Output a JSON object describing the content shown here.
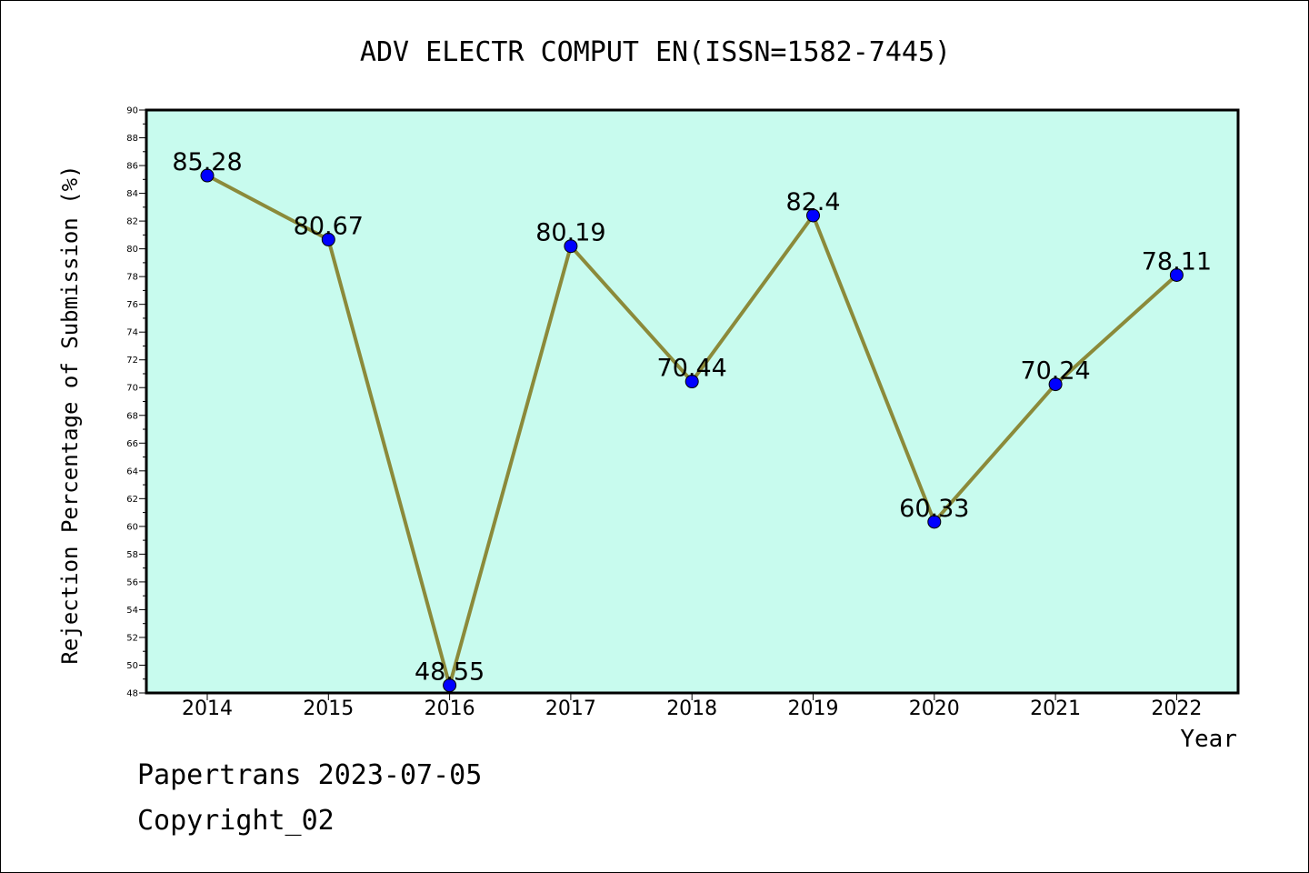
{
  "chart_data": {
    "type": "line",
    "title": "ADV ELECTR COMPUT EN(ISSN=1582-7445)",
    "xlabel": "Year",
    "ylabel": "Rejection Percentage of Submission (%)",
    "categories": [
      "2014",
      "2015",
      "2016",
      "2017",
      "2018",
      "2019",
      "2020",
      "2021",
      "2022"
    ],
    "values": [
      85.28,
      80.67,
      48.55,
      80.19,
      70.44,
      82.4,
      60.33,
      70.24,
      78.11
    ],
    "data_labels": [
      "85.28",
      "80.67",
      "48.55",
      "80.19",
      "70.44",
      "82.4",
      "60.33",
      "70.24",
      "78.11"
    ],
    "ylim": [
      48,
      90
    ],
    "ytick_step": 2,
    "grid": false,
    "colors": {
      "plot_background": "#c8fbee",
      "line": "#8b8a3a",
      "marker": "#0000ff"
    }
  },
  "footer": {
    "line1": "Papertrans 2023-07-05",
    "line2": "Copyright_02"
  }
}
